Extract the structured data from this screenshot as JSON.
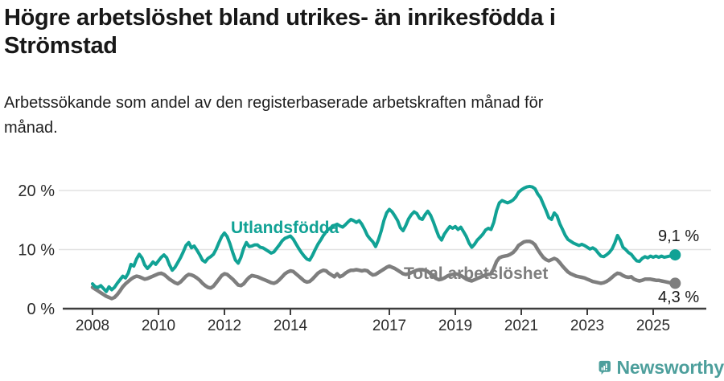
{
  "page": {
    "title_line1": "Högre arbetslöshet bland utrikes- än inrikesfödda i",
    "title_line2": "Strömstad",
    "subtitle_line1": "Arbetssökande som andel av den registerbaserade arbetskraften månad för",
    "subtitle_line2": "månad.",
    "background_color": "#ffffff"
  },
  "footer": {
    "brand": "Newsworthy",
    "brand_color": "#4d9f9c",
    "logo_icon": "newsworthy-speech-bubble-bar-chart-icon"
  },
  "chart_data": {
    "type": "line",
    "unit": "percent",
    "frequency": "monthly",
    "x_start": "2008-01",
    "x_end": "2025-09",
    "ylim": [
      0,
      22
    ],
    "grid": "horizontal",
    "legend_position": "inline-labels",
    "axis_color": "#3d3d3d",
    "grid_color": "#e2e2e2",
    "tick_label_color": "#2b2b2b",
    "value_label_color": "#1a1a1a",
    "x_ticks": [
      {
        "year": 2008,
        "label": "2008"
      },
      {
        "year": 2010,
        "label": "2010"
      },
      {
        "year": 2012,
        "label": "2012"
      },
      {
        "year": 2014,
        "label": "2014"
      },
      {
        "year": 2017,
        "label": "2017"
      },
      {
        "year": 2019,
        "label": "2019"
      },
      {
        "year": 2021,
        "label": "2021"
      },
      {
        "year": 2023,
        "label": "2023"
      },
      {
        "year": 2025,
        "label": "2025"
      }
    ],
    "y_ticks": [
      {
        "value": 0,
        "label": "0 %"
      },
      {
        "value": 10,
        "label": "10 %"
      },
      {
        "value": 20,
        "label": "20 %"
      }
    ],
    "series": [
      {
        "name": "Utlandsfödda",
        "color": "#11a295",
        "end_label": "9,1 %",
        "end_value": 9.1,
        "values": [
          4.2,
          3.7,
          3.6,
          3.9,
          3.4,
          2.9,
          3.7,
          3.2,
          3.6,
          4.3,
          4.9,
          5.5,
          5.2,
          6.0,
          7.5,
          7.2,
          8.4,
          9.2,
          8.6,
          7.4,
          6.8,
          7.3,
          7.9,
          7.5,
          8.1,
          8.7,
          9.1,
          8.6,
          7.4,
          6.5,
          7.0,
          7.8,
          8.6,
          9.6,
          10.7,
          11.2,
          10.3,
          10.6,
          9.9,
          9.1,
          8.2,
          7.9,
          8.5,
          8.8,
          9.2,
          10.1,
          11.2,
          12.2,
          12.8,
          12.2,
          11.0,
          9.5,
          8.2,
          7.7,
          8.7,
          10.2,
          11.2,
          10.5,
          10.6,
          10.8,
          10.8,
          10.4,
          10.3,
          10.0,
          9.7,
          9.4,
          9.6,
          10.2,
          10.8,
          11.5,
          11.9,
          12.1,
          12.3,
          11.8,
          11.0,
          10.2,
          9.5,
          8.9,
          8.4,
          8.2,
          9.0,
          10.0,
          10.9,
          11.6,
          12.4,
          13.0,
          13.5,
          13.8,
          14.1,
          14.3,
          14.0,
          13.8,
          14.2,
          14.7,
          15.1,
          14.9,
          14.6,
          14.9,
          14.3,
          13.4,
          12.4,
          11.8,
          11.3,
          10.5,
          11.6,
          13.1,
          14.9,
          16.2,
          16.8,
          16.4,
          15.7,
          14.9,
          13.7,
          13.2,
          14.1,
          15.2,
          15.9,
          16.4,
          16.1,
          15.3,
          15.1,
          15.9,
          16.5,
          15.8,
          14.7,
          13.4,
          12.2,
          11.6,
          12.6,
          13.3,
          13.9,
          13.6,
          13.9,
          13.4,
          13.8,
          13.0,
          12.2,
          11.1,
          10.4,
          10.9,
          11.6,
          12.1,
          12.6,
          13.3,
          13.6,
          13.4,
          14.6,
          16.6,
          17.9,
          18.3,
          18.1,
          17.9,
          18.1,
          18.4,
          18.9,
          19.7,
          20.1,
          20.4,
          20.6,
          20.7,
          20.6,
          20.3,
          19.4,
          18.8,
          17.7,
          16.6,
          15.4,
          15.1,
          16.2,
          15.7,
          14.4,
          13.4,
          12.4,
          11.7,
          11.4,
          11.1,
          10.9,
          10.7,
          10.9,
          10.7,
          10.4,
          10.1,
          10.3,
          10.0,
          9.4,
          8.9,
          8.8,
          9.1,
          9.5,
          10.1,
          11.1,
          12.4,
          11.6,
          10.4,
          10.0,
          9.5,
          9.2,
          8.6,
          8.1,
          8.0,
          8.5,
          8.8,
          8.6,
          8.9,
          8.7,
          8.9,
          8.7,
          8.9,
          8.7,
          8.8,
          8.9,
          9.0,
          9.1
        ]
      },
      {
        "name": "Total arbetslöshet",
        "color": "#7e7e7e",
        "end_label": "4,3 %",
        "end_value": 4.3,
        "values": [
          3.6,
          3.3,
          3.0,
          2.7,
          2.4,
          2.1,
          1.9,
          1.7,
          1.9,
          2.4,
          3.0,
          3.7,
          4.2,
          4.6,
          5.0,
          5.3,
          5.5,
          5.4,
          5.2,
          5.0,
          5.1,
          5.3,
          5.5,
          5.7,
          5.9,
          6.0,
          5.8,
          5.4,
          5.0,
          4.7,
          4.4,
          4.2,
          4.5,
          5.0,
          5.5,
          5.8,
          5.7,
          5.5,
          5.2,
          4.8,
          4.3,
          3.9,
          3.6,
          3.5,
          3.8,
          4.4,
          5.0,
          5.6,
          5.9,
          5.8,
          5.4,
          5.0,
          4.5,
          4.0,
          3.9,
          4.2,
          4.8,
          5.3,
          5.6,
          5.5,
          5.4,
          5.2,
          5.0,
          4.8,
          4.6,
          4.4,
          4.3,
          4.5,
          4.9,
          5.4,
          5.9,
          6.2,
          6.4,
          6.3,
          5.9,
          5.5,
          5.1,
          4.7,
          4.5,
          4.6,
          5.0,
          5.5,
          6.0,
          6.3,
          6.5,
          6.4,
          6.0,
          5.7,
          5.4,
          5.9,
          5.4,
          5.6,
          6.0,
          6.3,
          6.5,
          6.5,
          6.6,
          6.5,
          6.4,
          6.5,
          6.4,
          6.0,
          5.7,
          5.8,
          6.1,
          6.4,
          6.7,
          7.0,
          7.2,
          7.0,
          6.8,
          6.5,
          6.2,
          5.9,
          5.8,
          5.9,
          6.1,
          6.3,
          6.5,
          6.6,
          6.6,
          6.5,
          6.3,
          5.9,
          5.5,
          5.1,
          4.9,
          5.0,
          5.2,
          5.5,
          5.7,
          5.8,
          5.9,
          5.8,
          5.6,
          5.3,
          5.0,
          4.8,
          4.7,
          4.9,
          5.1,
          5.3,
          5.5,
          5.7,
          5.8,
          5.9,
          6.8,
          8.0,
          8.6,
          8.8,
          8.9,
          9.0,
          9.2,
          9.5,
          10.0,
          10.7,
          11.0,
          11.3,
          11.4,
          11.4,
          11.2,
          10.8,
          10.0,
          9.3,
          8.7,
          8.3,
          8.1,
          8.3,
          8.5,
          8.3,
          7.8,
          7.2,
          6.7,
          6.2,
          5.9,
          5.7,
          5.5,
          5.4,
          5.3,
          5.2,
          5.0,
          4.8,
          4.6,
          4.5,
          4.4,
          4.3,
          4.4,
          4.6,
          4.9,
          5.3,
          5.7,
          6.0,
          5.9,
          5.6,
          5.4,
          5.3,
          5.4,
          5.0,
          4.8,
          4.7,
          4.8,
          5.0,
          5.0,
          5.0,
          4.9,
          4.8,
          4.8,
          4.7,
          4.6,
          4.5,
          4.4,
          4.4,
          4.3
        ]
      }
    ]
  }
}
